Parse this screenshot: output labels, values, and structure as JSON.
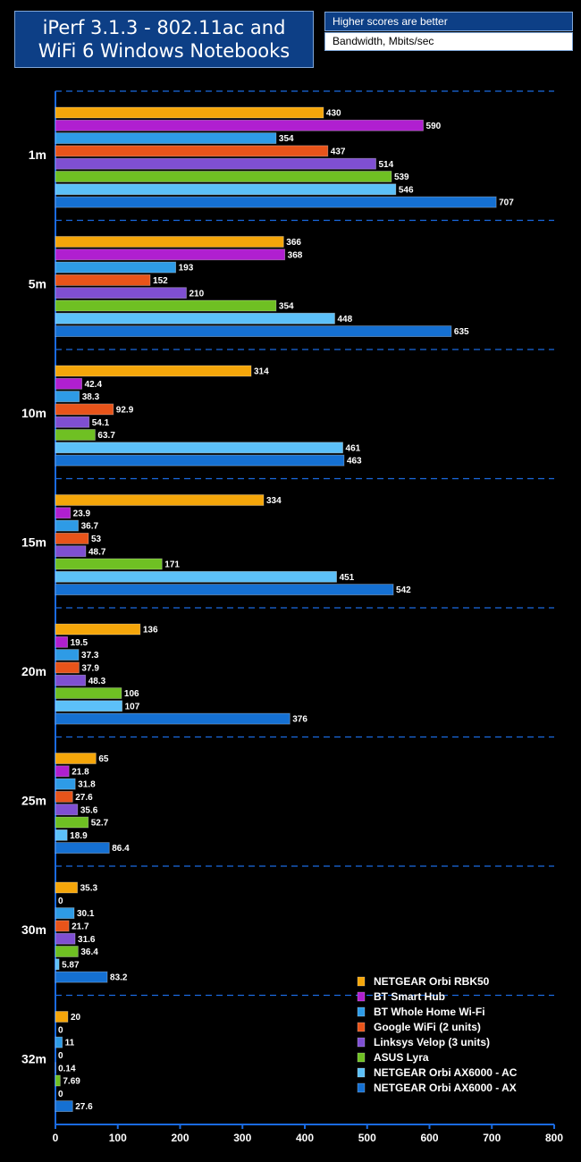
{
  "chart_data": {
    "type": "hbar",
    "title": "iPerf 3.1.3 - 802.11ac and WiFi 6 Windows Notebooks",
    "annotation": "Higher scores are better",
    "xlabel": "Bandwidth, Mbits/sec",
    "categories": [
      "1m",
      "5m",
      "10m",
      "15m",
      "20m",
      "25m",
      "30m",
      "32m"
    ],
    "series": [
      {
        "name": "NETGEAR Orbi RBK50",
        "color": "#f5a60a",
        "values": [
          430,
          366,
          314,
          334,
          136,
          65,
          35.3,
          20
        ]
      },
      {
        "name": "BT Smart Hub",
        "color": "#b01fd0",
        "values": [
          590,
          368,
          42.4,
          23.9,
          19.5,
          21.8,
          0,
          0
        ]
      },
      {
        "name": "BT Whole Home Wi-Fi",
        "color": "#2e9be6",
        "values": [
          354,
          193,
          38.3,
          36.7,
          37.3,
          31.8,
          30.1,
          11
        ]
      },
      {
        "name": "Google WiFi (2 units)",
        "color": "#e8541a",
        "values": [
          437,
          152,
          92.9,
          53,
          37.9,
          27.6,
          21.7,
          0
        ]
      },
      {
        "name": "Linksys Velop (3 units)",
        "color": "#7f4fd2",
        "values": [
          514,
          210,
          54.1,
          48.7,
          48.3,
          35.6,
          31.6,
          0.14
        ]
      },
      {
        "name": "ASUS Lyra",
        "color": "#6fc023",
        "values": [
          539,
          354,
          63.7,
          171,
          106,
          52.7,
          36.4,
          7.69
        ]
      },
      {
        "name": "NETGEAR Orbi AX6000 - AC",
        "color": "#5cc0f8",
        "values": [
          546,
          448,
          461,
          451,
          107,
          18.9,
          5.87,
          0
        ]
      },
      {
        "name": "NETGEAR Orbi AX6000 - AX",
        "color": "#1570d2",
        "values": [
          707,
          635,
          463,
          542,
          376,
          86.4,
          83.2,
          27.6
        ]
      }
    ],
    "xlim": [
      0,
      800
    ],
    "xticks": [
      0,
      100,
      200,
      300,
      400,
      500,
      600,
      700,
      800
    ]
  }
}
